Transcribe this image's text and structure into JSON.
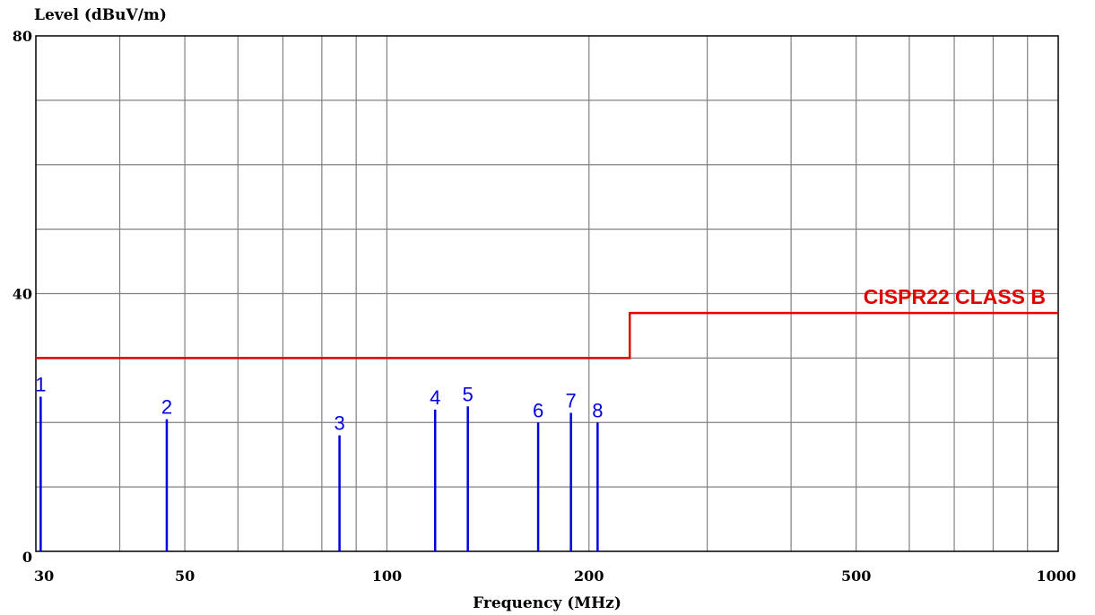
{
  "chart_data": {
    "type": "line",
    "ylabel": "Level (dBuV/m)",
    "xlabel": "Frequency (MHz)",
    "x_scale": "log",
    "xlim": [
      30,
      1000
    ],
    "ylim": [
      0,
      80
    ],
    "grid": true,
    "x_ticks": [
      30,
      50,
      100,
      200,
      500,
      1000
    ],
    "x_tick_labels": [
      "30",
      "50",
      "100",
      "200",
      "500",
      "1000"
    ],
    "x_gridlines": [
      40,
      50,
      60,
      70,
      80,
      90,
      100,
      200,
      300,
      400,
      500,
      600,
      700,
      800,
      900
    ],
    "y_ticks": [
      0,
      40,
      80
    ],
    "y_tick_labels": [
      "0",
      "40",
      "80"
    ],
    "y_gridlines": [
      10,
      20,
      30,
      40,
      50,
      60,
      70
    ],
    "limit_line": {
      "name": "CISPR22 CLASS B",
      "color": "#e00000",
      "points": [
        [
          30,
          30
        ],
        [
          230,
          30
        ],
        [
          230,
          37
        ],
        [
          1000,
          37
        ]
      ]
    },
    "markers": {
      "color": "#0000e0",
      "points": [
        {
          "label": "1",
          "x": 30.5,
          "y": 24
        },
        {
          "label": "2",
          "x": 47,
          "y": 20.5
        },
        {
          "label": "3",
          "x": 85,
          "y": 18
        },
        {
          "label": "4",
          "x": 118,
          "y": 22
        },
        {
          "label": "5",
          "x": 132,
          "y": 22.5
        },
        {
          "label": "6",
          "x": 168,
          "y": 20
        },
        {
          "label": "7",
          "x": 188,
          "y": 21.5
        },
        {
          "label": "8",
          "x": 206,
          "y": 20
        }
      ]
    }
  }
}
